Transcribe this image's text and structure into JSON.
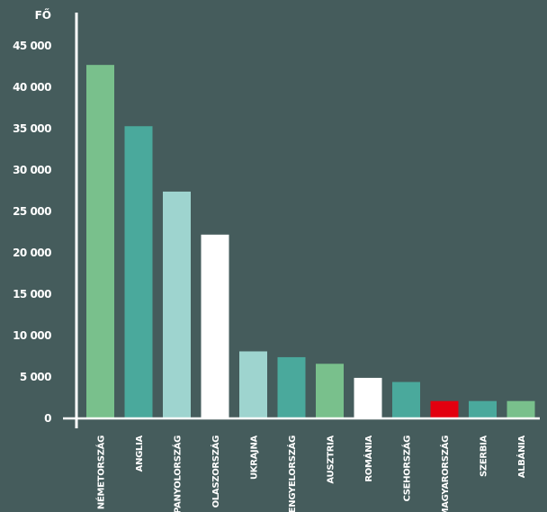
{
  "chart_data": {
    "type": "bar",
    "title": "",
    "xlabel": "",
    "ylabel": "FŐ",
    "ylim": [
      0,
      45000
    ],
    "yticks": [
      0,
      5000,
      10000,
      15000,
      20000,
      25000,
      30000,
      35000,
      40000,
      45000
    ],
    "ytick_labels": [
      "0",
      "5 000",
      "10 000",
      "15 000",
      "20 000",
      "25 000",
      "30 000",
      "35 000",
      "40 000",
      "45 000"
    ],
    "grid": false,
    "legend": "none",
    "categories": [
      "NÉMETORSZÁG",
      "ANGLIA",
      "SPANYOLORSZÁG",
      "OLASZORSZÁG",
      "UKRAJNA",
      "LENGYELORSZÁG",
      "AUSZTRIA",
      "ROMÁNIA",
      "CSEHORSZÁG",
      "MAGYARORSZÁG",
      "SZERBIA",
      "ALBÁNIA"
    ],
    "values": [
      42700,
      35300,
      27400,
      22200,
      8100,
      7400,
      6600,
      4900,
      4400,
      2100,
      2100,
      2100
    ],
    "bar_colors": [
      "#79c08c",
      "#4aa99c",
      "#9ed4cf",
      "#ffffff",
      "#9ed4cf",
      "#4aa99c",
      "#79c08c",
      "#ffffff",
      "#4aa99c",
      "#e3000f",
      "#4aa99c",
      "#79c08c"
    ],
    "axis_color": "#ffffff",
    "background": "#455c5c"
  }
}
